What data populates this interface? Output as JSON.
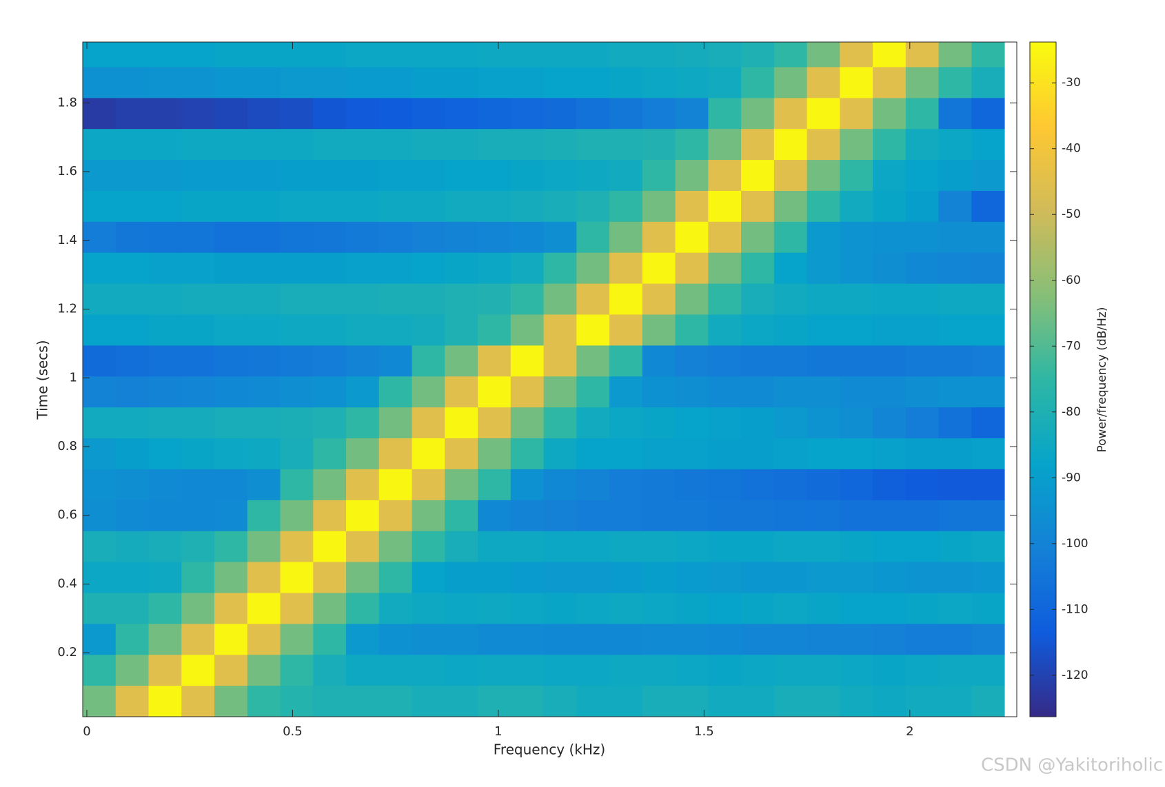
{
  "chart_data": {
    "type": "heatmap",
    "xlabel": "Frequency (kHz)",
    "ylabel": "Time (secs)",
    "x": [
      0.03,
      0.11,
      0.19,
      0.27,
      0.35,
      0.43,
      0.51,
      0.59,
      0.67,
      0.75,
      0.83,
      0.91,
      0.99,
      1.07,
      1.15,
      1.23,
      1.31,
      1.39,
      1.47,
      1.55,
      1.63,
      1.71,
      1.79,
      1.87,
      1.95,
      2.03,
      2.11,
      2.19
    ],
    "y": [
      0.06,
      0.15,
      0.24,
      0.33,
      0.42,
      0.51,
      0.6,
      0.69,
      0.78,
      0.87,
      0.96,
      1.05,
      1.14,
      1.23,
      1.32,
      1.41,
      1.5,
      1.59,
      1.68,
      1.77,
      1.86,
      1.95
    ],
    "z": [
      [
        -65,
        -45,
        -25,
        -45,
        -65,
        -75,
        -78,
        -80,
        -80,
        -80,
        -82,
        -82,
        -80,
        -80,
        -82,
        -84,
        -84,
        -82,
        -82,
        -84,
        -84,
        -82,
        -82,
        -84,
        -85,
        -84,
        -84,
        -82
      ],
      [
        -75,
        -65,
        -45,
        -25,
        -45,
        -65,
        -75,
        -82,
        -85,
        -85,
        -85,
        -86,
        -85,
        -85,
        -86,
        -86,
        -85,
        -85,
        -86,
        -87,
        -86,
        -85,
        -85,
        -86,
        -87,
        -86,
        -85,
        -85
      ],
      [
        -92,
        -75,
        -65,
        -45,
        -25,
        -45,
        -65,
        -75,
        -92,
        -95,
        -96,
        -96,
        -97,
        -97,
        -98,
        -98,
        -98,
        -97,
        -97,
        -98,
        -99,
        -99,
        -100,
        -100,
        -101,
        -102,
        -102,
        -101
      ],
      [
        -80,
        -80,
        -75,
        -65,
        -45,
        -25,
        -45,
        -65,
        -75,
        -84,
        -85,
        -86,
        -85,
        -86,
        -87,
        -86,
        -85,
        -86,
        -87,
        -88,
        -87,
        -86,
        -87,
        -88,
        -88,
        -87,
        -86,
        -87
      ],
      [
        -86,
        -86,
        -85,
        -75,
        -65,
        -45,
        -25,
        -45,
        -65,
        -75,
        -88,
        -90,
        -90,
        -91,
        -92,
        -92,
        -91,
        -90,
        -91,
        -92,
        -93,
        -93,
        -92,
        -92,
        -93,
        -94,
        -94,
        -93
      ],
      [
        -82,
        -83,
        -82,
        -80,
        -75,
        -65,
        -45,
        -25,
        -45,
        -65,
        -75,
        -82,
        -85,
        -85,
        -86,
        -86,
        -85,
        -85,
        -86,
        -87,
        -87,
        -86,
        -86,
        -87,
        -88,
        -88,
        -87,
        -86
      ],
      [
        -96,
        -97,
        -98,
        -98,
        -97,
        -75,
        -65,
        -45,
        -25,
        -45,
        -65,
        -75,
        -98,
        -100,
        -101,
        -102,
        -102,
        -103,
        -103,
        -104,
        -104,
        -105,
        -105,
        -106,
        -106,
        -106,
        -105,
        -105
      ],
      [
        -95,
        -96,
        -97,
        -98,
        -98,
        -96,
        -75,
        -65,
        -45,
        -25,
        -45,
        -65,
        -75,
        -95,
        -98,
        -100,
        -102,
        -103,
        -104,
        -105,
        -106,
        -107,
        -108,
        -110,
        -112,
        -113,
        -114,
        -114
      ],
      [
        -92,
        -90,
        -88,
        -87,
        -86,
        -85,
        -82,
        -75,
        -65,
        -45,
        -25,
        -45,
        -65,
        -75,
        -85,
        -88,
        -88,
        -89,
        -89,
        -90,
        -90,
        -89,
        -88,
        -88,
        -89,
        -90,
        -90,
        -89
      ],
      [
        -84,
        -84,
        -83,
        -83,
        -82,
        -82,
        -81,
        -80,
        -75,
        -65,
        -45,
        -25,
        -45,
        -65,
        -75,
        -84,
        -86,
        -87,
        -88,
        -89,
        -90,
        -92,
        -94,
        -96,
        -99,
        -102,
        -106,
        -110
      ],
      [
        -100,
        -101,
        -100,
        -99,
        -98,
        -97,
        -96,
        -95,
        -92,
        -75,
        -65,
        -45,
        -25,
        -45,
        -65,
        -75,
        -92,
        -95,
        -96,
        -97,
        -97,
        -96,
        -96,
        -97,
        -97,
        -96,
        -95,
        -95
      ],
      [
        -108,
        -107,
        -106,
        -106,
        -105,
        -104,
        -103,
        -102,
        -100,
        -98,
        -75,
        -65,
        -45,
        -25,
        -45,
        -65,
        -75,
        -98,
        -101,
        -102,
        -103,
        -103,
        -104,
        -104,
        -104,
        -103,
        -103,
        -102
      ],
      [
        -88,
        -88,
        -87,
        -87,
        -86,
        -86,
        -85,
        -85,
        -84,
        -84,
        -83,
        -80,
        -75,
        -65,
        -45,
        -25,
        -45,
        -65,
        -75,
        -84,
        -86,
        -87,
        -88,
        -88,
        -89,
        -89,
        -88,
        -88
      ],
      [
        -84,
        -84,
        -84,
        -83,
        -83,
        -83,
        -82,
        -82,
        -82,
        -81,
        -81,
        -80,
        -79,
        -75,
        -65,
        -45,
        -25,
        -45,
        -65,
        -75,
        -82,
        -84,
        -85,
        -85,
        -86,
        -86,
        -85,
        -85
      ],
      [
        -88,
        -88,
        -89,
        -89,
        -90,
        -90,
        -90,
        -90,
        -89,
        -89,
        -88,
        -87,
        -86,
        -84,
        -75,
        -65,
        -45,
        -25,
        -45,
        -65,
        -75,
        -88,
        -92,
        -94,
        -96,
        -98,
        -99,
        -100
      ],
      [
        -102,
        -104,
        -105,
        -105,
        -106,
        -106,
        -105,
        -104,
        -103,
        -102,
        -101,
        -100,
        -99,
        -98,
        -96,
        -75,
        -65,
        -45,
        -25,
        -45,
        -65,
        -75,
        -92,
        -94,
        -95,
        -95,
        -96,
        -96
      ],
      [
        -88,
        -88,
        -88,
        -87,
        -87,
        -87,
        -86,
        -86,
        -86,
        -85,
        -85,
        -84,
        -84,
        -83,
        -82,
        -80,
        -75,
        -65,
        -45,
        -25,
        -45,
        -65,
        -75,
        -84,
        -87,
        -90,
        -100,
        -110
      ],
      [
        -92,
        -92,
        -92,
        -91,
        -91,
        -91,
        -90,
        -90,
        -90,
        -89,
        -89,
        -88,
        -88,
        -87,
        -86,
        -85,
        -84,
        -75,
        -65,
        -45,
        -25,
        -45,
        -65,
        -75,
        -86,
        -88,
        -90,
        -92
      ],
      [
        -86,
        -86,
        -86,
        -85,
        -85,
        -85,
        -85,
        -84,
        -84,
        -84,
        -83,
        -83,
        -82,
        -82,
        -81,
        -80,
        -80,
        -79,
        -75,
        -65,
        -45,
        -25,
        -45,
        -65,
        -75,
        -84,
        -86,
        -88
      ],
      [
        -122,
        -121,
        -121,
        -120,
        -119,
        -118,
        -117,
        -115,
        -114,
        -113,
        -112,
        -111,
        -110,
        -109,
        -108,
        -106,
        -104,
        -102,
        -100,
        -75,
        -65,
        -45,
        -25,
        -45,
        -65,
        -75,
        -105,
        -110
      ],
      [
        -95,
        -95,
        -94,
        -94,
        -93,
        -93,
        -92,
        -92,
        -91,
        -91,
        -90,
        -90,
        -89,
        -89,
        -88,
        -88,
        -87,
        -86,
        -85,
        -84,
        -75,
        -65,
        -45,
        -25,
        -45,
        -65,
        -75,
        -82
      ],
      [
        -88,
        -88,
        -88,
        -88,
        -87,
        -87,
        -87,
        -87,
        -86,
        -86,
        -86,
        -86,
        -85,
        -85,
        -85,
        -85,
        -84,
        -84,
        -83,
        -82,
        -80,
        -75,
        -65,
        -45,
        -25,
        -45,
        -65,
        -75
      ]
    ],
    "xlim": [
      -0.01,
      2.26
    ],
    "ylim": [
      0.014,
      1.977
    ],
    "xticks": [
      0,
      0.5,
      1,
      1.5,
      2
    ],
    "yticks": [
      0.2,
      0.4,
      0.6,
      0.8,
      1,
      1.2,
      1.4,
      1.6,
      1.8
    ],
    "colormap": [
      "#352a87",
      "#0f5cdd",
      "#1481d6",
      "#06a4ca",
      "#2eb7a4",
      "#87bf77",
      "#d1bb59",
      "#fec832",
      "#f9fb0e"
    ],
    "colorbar": {
      "label": "Power/frequency (dB/Hz)",
      "clim": [
        -126.3,
        -23.8
      ],
      "ticks": [
        -120,
        -110,
        -100,
        -90,
        -80,
        -70,
        -60,
        -50,
        -40,
        -30
      ]
    }
  },
  "watermark": "CSDN @Yakitoriholic"
}
